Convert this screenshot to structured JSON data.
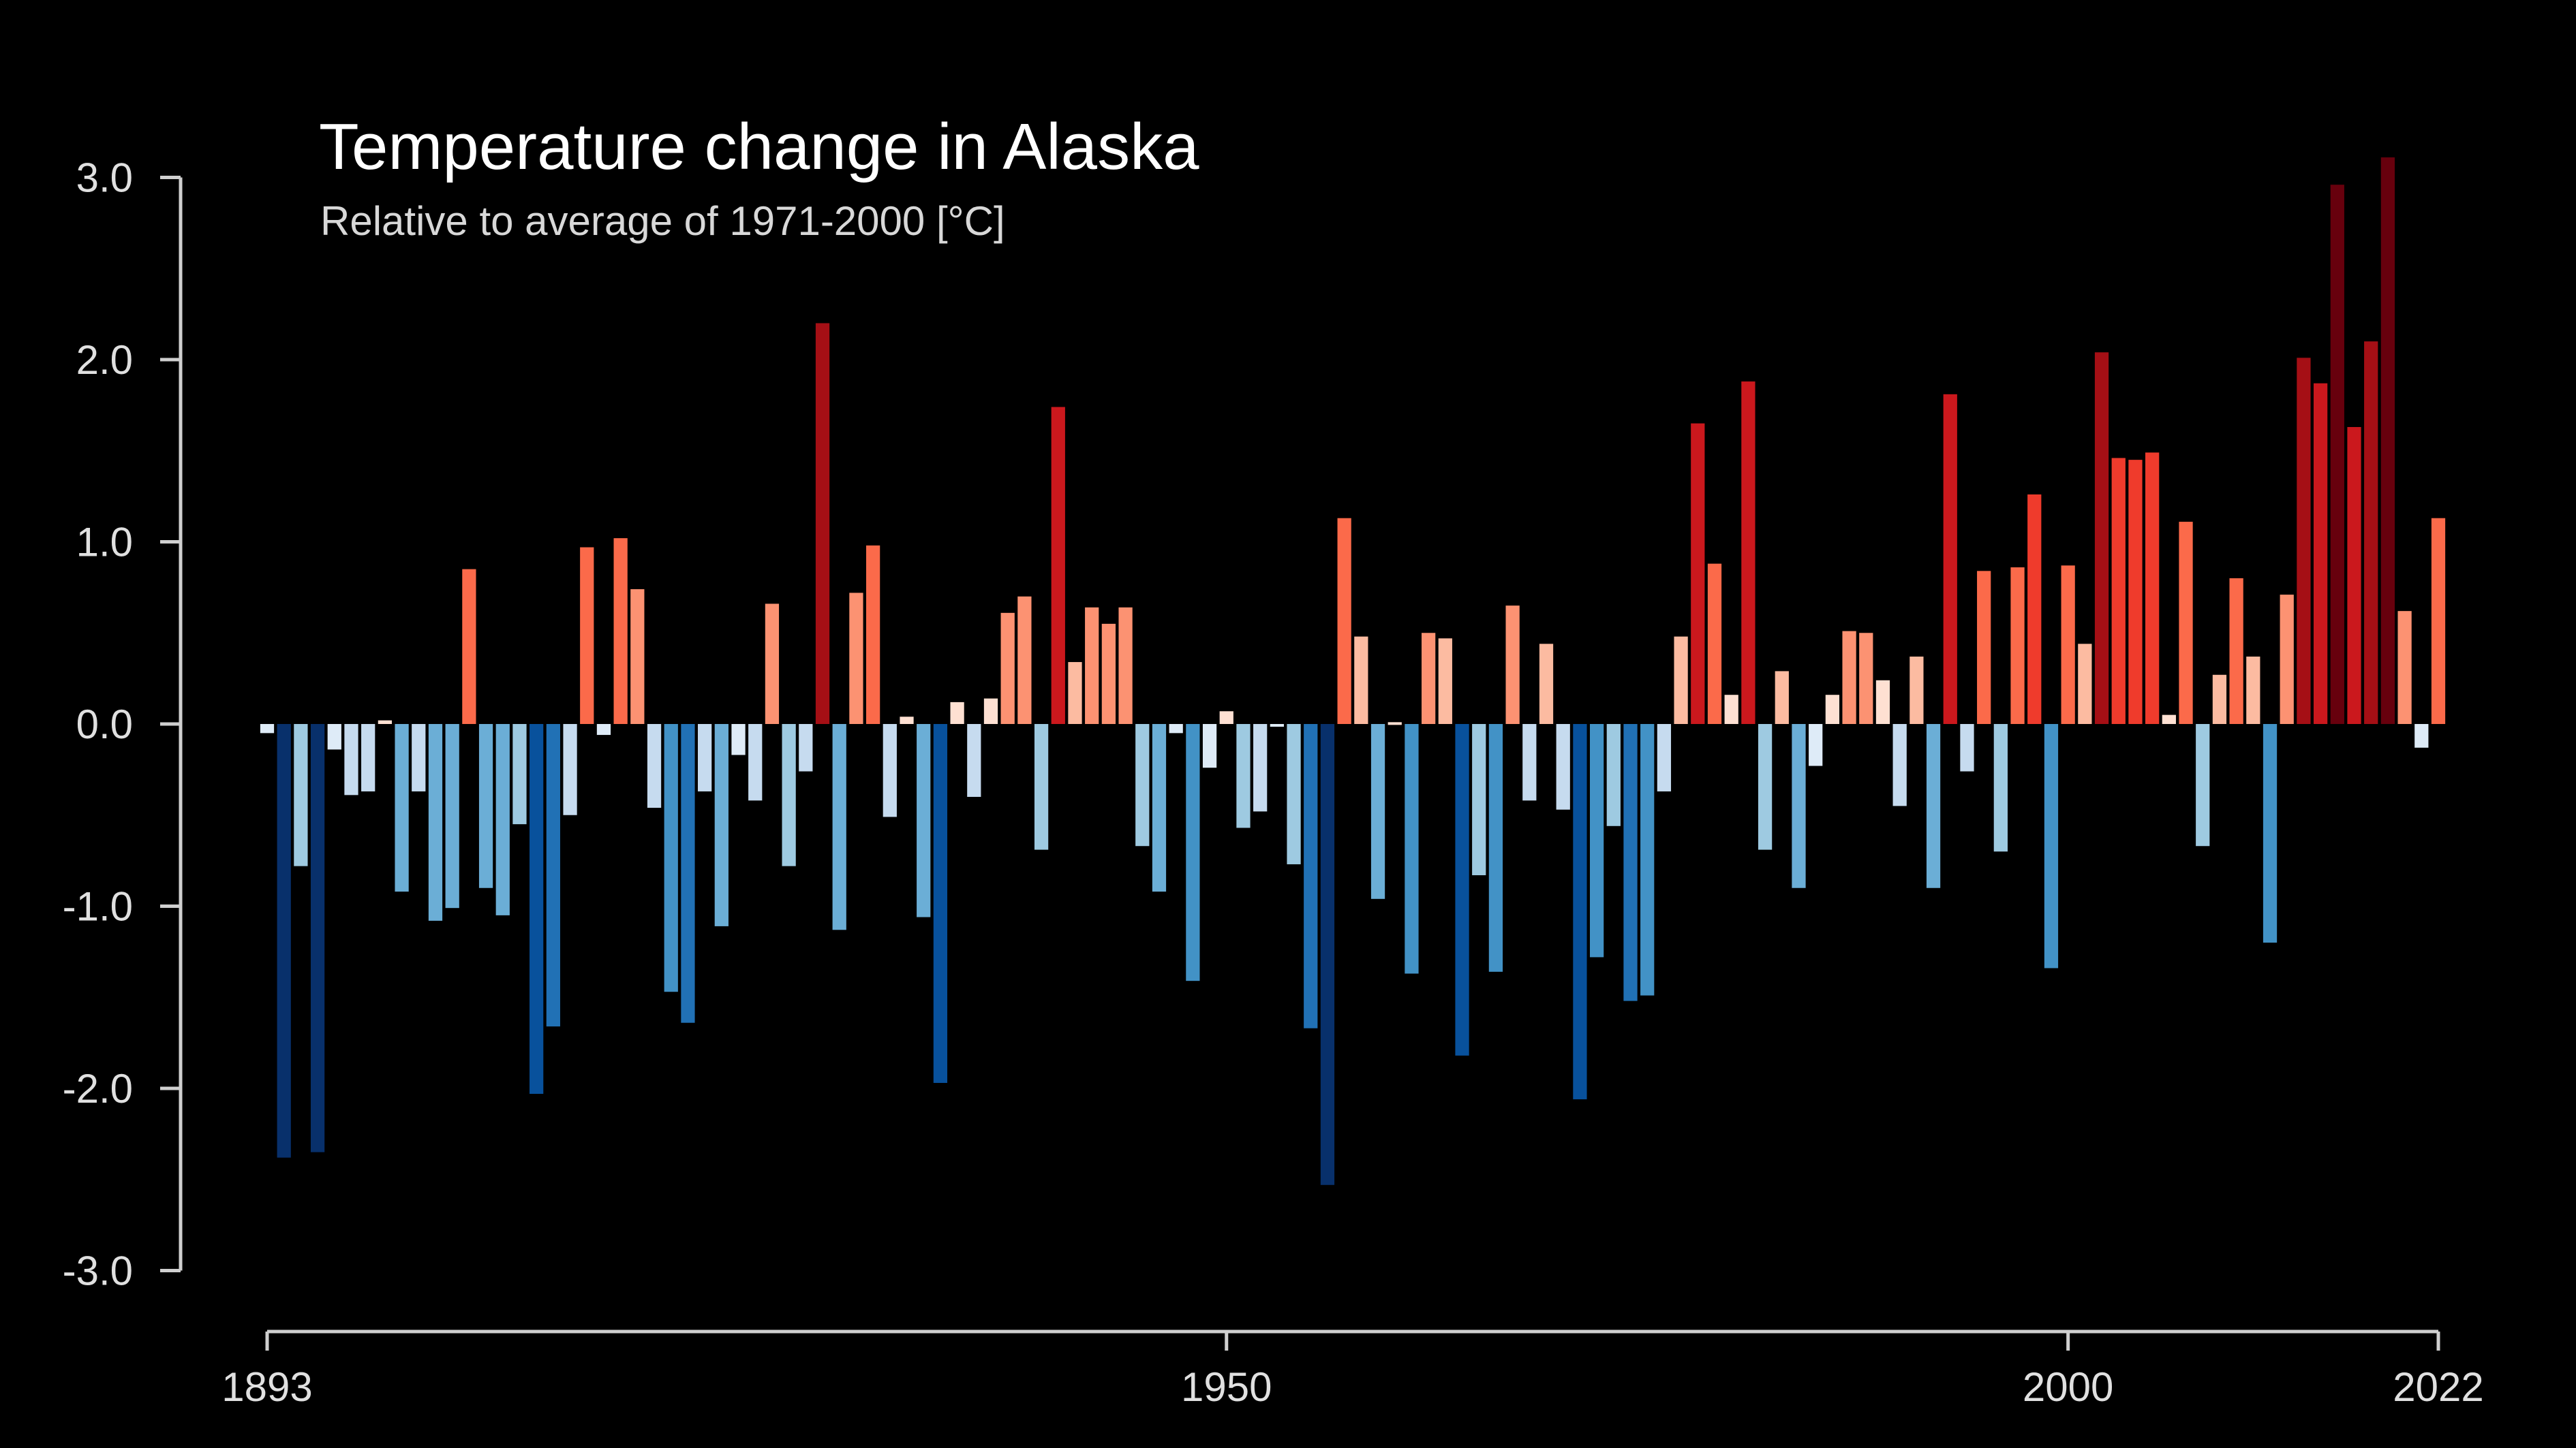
{
  "chart_data": {
    "type": "bar",
    "title": "Temperature change in Alaska",
    "subtitle": "Relative to average of 1971-2000  [°C]",
    "xlabel": "",
    "ylabel": "",
    "x_start": 1893,
    "x_end": 2022,
    "ylim": [
      -3.0,
      3.0
    ],
    "y_ticks": [
      "3.0",
      "2.0",
      "1.0",
      "0.0",
      "-1.0",
      "-2.0",
      "-3.0"
    ],
    "y_tick_values": [
      3,
      2,
      1,
      0,
      -1,
      -2,
      -3
    ],
    "x_ticks": [
      "1893",
      "1950",
      "2000",
      "2022"
    ],
    "x_tick_values": [
      1893,
      1950,
      2000,
      2022
    ],
    "grid": false,
    "legend": "none",
    "color_scale": "blue-white-red by anomaly",
    "series": [
      {
        "values": [
          -0.05,
          -2.38,
          -0.78,
          -2.35,
          -0.14,
          -0.39,
          -0.37,
          0.02,
          -0.92,
          -0.37,
          -1.08,
          -1.01,
          0.85,
          -0.9,
          -1.05,
          -0.55,
          -2.03,
          -1.66,
          -0.5,
          0.97,
          -0.06,
          1.02,
          0.74,
          -0.46,
          -1.47,
          -1.64,
          -0.37,
          -1.11,
          -0.17,
          -0.42,
          0.66,
          -0.78,
          -0.26,
          2.2,
          -1.13,
          0.72,
          0.98,
          -0.51,
          0.04,
          -1.06,
          -1.97,
          0.12,
          -0.4,
          0.14,
          0.61,
          0.7,
          -0.69,
          1.74,
          0.34,
          0.64,
          0.55,
          0.64,
          -0.67,
          -0.92,
          -0.05,
          -1.41,
          -0.24,
          0.07,
          -0.57,
          -0.48,
          -0.01,
          -0.77,
          -1.67,
          -2.53,
          1.13,
          0.48,
          -0.96,
          0.01,
          -1.37,
          0.5,
          0.47,
          -1.82,
          -0.83,
          -1.36,
          0.65,
          -0.42,
          0.44,
          -0.47,
          -2.06,
          -1.28,
          -0.56,
          -1.52,
          -1.49,
          -0.37,
          0.48,
          1.65,
          0.88,
          0.16,
          1.88,
          -0.69,
          0.29,
          -0.9,
          -0.23,
          0.16,
          0.51,
          0.5,
          0.24,
          -0.45,
          0.37,
          -0.9,
          1.81,
          -0.26,
          0.84,
          -0.7,
          0.86,
          1.26,
          -1.34,
          0.87,
          0.44,
          2.04,
          1.46,
          1.45,
          1.49,
          0.05,
          1.11,
          -0.67,
          0.27,
          0.8,
          0.37,
          -1.2,
          0.71,
          2.01,
          1.87,
          2.96,
          1.63,
          2.1,
          3.11,
          0.62,
          -0.13,
          1.13
        ]
      }
    ]
  }
}
